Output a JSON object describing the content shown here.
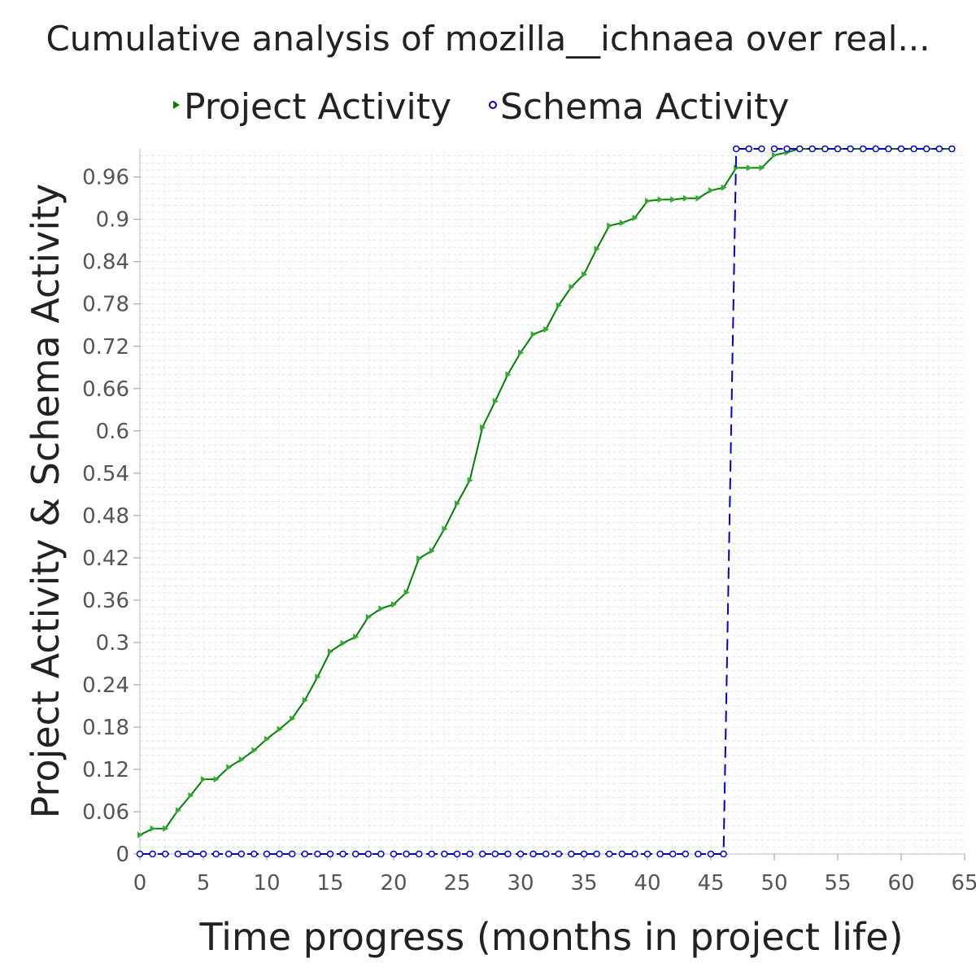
{
  "chart_data": {
    "type": "line",
    "title": "Cumulative analysis of mozilla__ichnaea over real...",
    "xlabel": "Time progress (months in project life)",
    "ylabel": "Project Activity & Schema Activity",
    "xlim": [
      0,
      65
    ],
    "ylim": [
      0,
      1.0
    ],
    "x_ticks": [
      "0",
      "5",
      "10",
      "15",
      "20",
      "25",
      "30",
      "35",
      "40",
      "45",
      "50",
      "55",
      "60",
      "65"
    ],
    "y_ticks": [
      "0",
      "0.06",
      "0.12",
      "0.18",
      "0.24",
      "0.3",
      "0.36",
      "0.42",
      "0.48",
      "0.54",
      "0.6",
      "0.66",
      "0.72",
      "0.78",
      "0.84",
      "0.9",
      "0.96"
    ],
    "grid": true,
    "legend_position": "top",
    "series": [
      {
        "name": "Project Activity",
        "color": "#008000",
        "marker": "triangle-right",
        "line_style": "solid",
        "x": [
          0,
          1,
          2,
          3,
          4,
          5,
          6,
          7,
          8,
          9,
          10,
          11,
          12,
          13,
          14,
          15,
          16,
          17,
          18,
          19,
          20,
          21,
          22,
          23,
          24,
          25,
          26,
          27,
          28,
          29,
          30,
          31,
          32,
          33,
          34,
          35,
          36,
          37,
          38,
          39,
          40,
          41,
          42,
          43,
          44,
          45,
          46,
          47,
          48,
          49,
          50,
          51,
          52,
          53,
          54,
          55,
          56,
          57,
          58,
          59,
          60,
          61,
          62,
          63,
          64
        ],
        "values": [
          0.027,
          0.036,
          0.036,
          0.062,
          0.083,
          0.106,
          0.106,
          0.123,
          0.134,
          0.147,
          0.163,
          0.177,
          0.192,
          0.218,
          0.251,
          0.287,
          0.299,
          0.308,
          0.336,
          0.348,
          0.354,
          0.371,
          0.419,
          0.43,
          0.461,
          0.497,
          0.53,
          0.605,
          0.642,
          0.68,
          0.711,
          0.737,
          0.744,
          0.778,
          0.804,
          0.822,
          0.858,
          0.891,
          0.895,
          0.902,
          0.926,
          0.928,
          0.928,
          0.93,
          0.93,
          0.941,
          0.945,
          0.973,
          0.973,
          0.973,
          0.991,
          0.995,
          1.0,
          1.0,
          1.0,
          1.0,
          1.0,
          1.0,
          1.0,
          1.0,
          1.0,
          1.0,
          1.0,
          1.0,
          1.0
        ]
      },
      {
        "name": "Schema Activity",
        "color": "#0000cc",
        "marker": "circle",
        "line_style": "dashed",
        "x": [
          0,
          1,
          2,
          3,
          4,
          5,
          6,
          7,
          8,
          9,
          10,
          11,
          12,
          13,
          14,
          15,
          16,
          17,
          18,
          19,
          20,
          21,
          22,
          23,
          24,
          25,
          26,
          27,
          28,
          29,
          30,
          31,
          32,
          33,
          34,
          35,
          36,
          37,
          38,
          39,
          40,
          41,
          42,
          43,
          44,
          45,
          46,
          47,
          48,
          49,
          50,
          51,
          52,
          53,
          54,
          55,
          56,
          57,
          58,
          59,
          60,
          61,
          62,
          63,
          64
        ],
        "values": [
          0,
          0,
          0,
          0,
          0,
          0,
          0,
          0,
          0,
          0,
          0,
          0,
          0,
          0,
          0,
          0,
          0,
          0,
          0,
          0,
          0,
          0,
          0,
          0,
          0,
          0,
          0,
          0,
          0,
          0,
          0,
          0,
          0,
          0,
          0,
          0,
          0,
          0,
          0,
          0,
          0,
          0,
          0,
          0,
          0,
          0,
          0,
          1,
          1,
          1,
          1,
          1,
          1,
          1,
          1,
          1,
          1,
          1,
          1,
          1,
          1,
          1,
          1,
          1,
          1
        ]
      }
    ]
  }
}
